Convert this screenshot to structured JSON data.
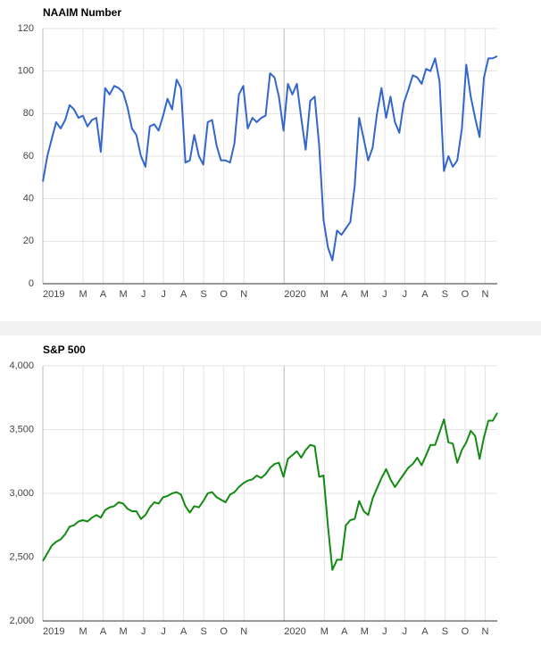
{
  "chart_data": [
    {
      "type": "line",
      "title": "NAAIM Number",
      "color": "#3366cc",
      "grid": true,
      "x": [
        0,
        0.22,
        0.44,
        0.66,
        0.89,
        1.11,
        1.33,
        1.55,
        1.77,
        1.99,
        2.22,
        2.44,
        2.66,
        2.88,
        3.1,
        3.32,
        3.55,
        3.77,
        3.99,
        4.21,
        4.43,
        4.65,
        4.88,
        5.1,
        5.32,
        5.54,
        5.76,
        5.98,
        6.2,
        6.43,
        6.65,
        6.87,
        7.09,
        7.31,
        7.53,
        7.76,
        7.98,
        8.2,
        8.42,
        8.64,
        8.86,
        9.09,
        9.31,
        9.53,
        9.75,
        9.97,
        10.19,
        10.42,
        10.64,
        10.86,
        11.08,
        11.3,
        11.52,
        11.74,
        11.97,
        12.19,
        12.41,
        12.63,
        12.85,
        13.07,
        13.3,
        13.52,
        13.74,
        13.96,
        14.18,
        14.4,
        14.63,
        14.85,
        15.07,
        15.29,
        15.51,
        15.73,
        15.96,
        16.18,
        16.4,
        16.62,
        16.84,
        17.07,
        17.29,
        17.51,
        17.73,
        17.95,
        18.17,
        18.4,
        18.62,
        18.84,
        19.06,
        19.28,
        19.51,
        19.73,
        19.95,
        20.17,
        20.39,
        20.61,
        20.84,
        21.06,
        21.28,
        21.5,
        21.72,
        21.94,
        22.16,
        22.38,
        22.6
      ],
      "values": [
        48,
        60,
        68,
        76,
        73,
        77,
        84,
        82,
        78,
        79,
        74,
        77,
        78,
        62,
        92,
        89,
        93,
        92,
        90,
        83,
        73,
        70,
        60,
        55,
        74,
        75,
        72,
        79,
        87,
        82,
        96,
        92,
        57,
        58,
        70,
        60,
        56,
        76,
        77,
        65,
        58,
        58,
        57,
        66,
        89,
        93,
        73,
        78,
        76,
        78,
        79,
        99,
        97,
        88,
        72,
        94,
        89,
        94,
        78,
        63,
        86,
        88,
        65,
        30,
        17,
        11,
        25,
        23,
        26,
        29,
        46,
        78,
        68,
        58,
        64,
        80,
        92,
        78,
        88,
        76,
        71,
        85,
        91,
        98,
        97,
        94,
        101,
        100,
        106,
        95,
        53,
        60,
        55,
        58,
        73,
        103,
        88,
        78,
        69,
        97,
        106,
        106,
        107
      ],
      "xlim": [
        0,
        22.6
      ],
      "xticks": [
        {
          "value": 0,
          "label": "2019"
        },
        {
          "value": 2,
          "label": "M"
        },
        {
          "value": 3,
          "label": "A"
        },
        {
          "value": 4,
          "label": "M"
        },
        {
          "value": 5,
          "label": "J"
        },
        {
          "value": 6,
          "label": "J"
        },
        {
          "value": 7,
          "label": "A"
        },
        {
          "value": 8,
          "label": "S"
        },
        {
          "value": 9,
          "label": "O"
        },
        {
          "value": 10,
          "label": "N"
        },
        {
          "value": 12,
          "label": "2020"
        },
        {
          "value": 14,
          "label": "M"
        },
        {
          "value": 15,
          "label": "A"
        },
        {
          "value": 16,
          "label": "M"
        },
        {
          "value": 17,
          "label": "J"
        },
        {
          "value": 18,
          "label": "J"
        },
        {
          "value": 19,
          "label": "A"
        },
        {
          "value": 20,
          "label": "S"
        },
        {
          "value": 21,
          "label": "O"
        },
        {
          "value": 22,
          "label": "N"
        }
      ],
      "ylim": [
        0,
        120
      ],
      "yticks": [
        0,
        20,
        40,
        60,
        80,
        100,
        120
      ]
    },
    {
      "type": "line",
      "title": "S&P 500",
      "color": "#138a13",
      "grid": true,
      "x": [
        0,
        0.22,
        0.44,
        0.66,
        0.89,
        1.11,
        1.33,
        1.55,
        1.77,
        1.99,
        2.22,
        2.44,
        2.66,
        2.88,
        3.1,
        3.32,
        3.55,
        3.77,
        3.99,
        4.21,
        4.43,
        4.65,
        4.88,
        5.1,
        5.32,
        5.54,
        5.76,
        5.98,
        6.2,
        6.43,
        6.65,
        6.87,
        7.09,
        7.31,
        7.53,
        7.76,
        7.98,
        8.2,
        8.42,
        8.64,
        8.86,
        9.09,
        9.31,
        9.53,
        9.75,
        9.97,
        10.19,
        10.42,
        10.64,
        10.86,
        11.08,
        11.3,
        11.52,
        11.74,
        11.97,
        12.19,
        12.41,
        12.63,
        12.85,
        13.07,
        13.3,
        13.52,
        13.74,
        13.96,
        14.18,
        14.4,
        14.63,
        14.85,
        15.07,
        15.29,
        15.51,
        15.73,
        15.96,
        16.18,
        16.4,
        16.62,
        16.84,
        17.07,
        17.29,
        17.51,
        17.73,
        17.95,
        18.17,
        18.4,
        18.62,
        18.84,
        19.06,
        19.28,
        19.51,
        19.73,
        19.95,
        20.17,
        20.39,
        20.61,
        20.84,
        21.06,
        21.28,
        21.5,
        21.72,
        21.94,
        22.16,
        22.38,
        22.6
      ],
      "values": [
        2470,
        2530,
        2590,
        2620,
        2640,
        2680,
        2740,
        2750,
        2780,
        2790,
        2780,
        2810,
        2830,
        2810,
        2870,
        2890,
        2900,
        2930,
        2920,
        2880,
        2860,
        2860,
        2800,
        2830,
        2890,
        2930,
        2920,
        2970,
        2980,
        3000,
        3010,
        2990,
        2900,
        2850,
        2900,
        2890,
        2940,
        3000,
        3010,
        2970,
        2950,
        2930,
        2990,
        3010,
        3050,
        3080,
        3100,
        3110,
        3140,
        3120,
        3150,
        3200,
        3230,
        3240,
        3130,
        3270,
        3300,
        3330,
        3280,
        3340,
        3380,
        3370,
        3130,
        3140,
        2740,
        2400,
        2480,
        2480,
        2750,
        2790,
        2800,
        2940,
        2860,
        2830,
        2960,
        3040,
        3120,
        3190,
        3110,
        3050,
        3100,
        3150,
        3200,
        3230,
        3280,
        3220,
        3300,
        3380,
        3380,
        3480,
        3580,
        3400,
        3390,
        3240,
        3340,
        3400,
        3490,
        3450,
        3270,
        3440,
        3570,
        3570,
        3630
      ],
      "xlim": [
        0,
        22.6
      ],
      "xticks": [
        {
          "value": 0,
          "label": "2019"
        },
        {
          "value": 2,
          "label": "M"
        },
        {
          "value": 3,
          "label": "A"
        },
        {
          "value": 4,
          "label": "M"
        },
        {
          "value": 5,
          "label": "J"
        },
        {
          "value": 6,
          "label": "J"
        },
        {
          "value": 7,
          "label": "A"
        },
        {
          "value": 8,
          "label": "S"
        },
        {
          "value": 9,
          "label": "O"
        },
        {
          "value": 10,
          "label": "N"
        },
        {
          "value": 12,
          "label": "2020"
        },
        {
          "value": 14,
          "label": "M"
        },
        {
          "value": 15,
          "label": "A"
        },
        {
          "value": 16,
          "label": "M"
        },
        {
          "value": 17,
          "label": "J"
        },
        {
          "value": 18,
          "label": "J"
        },
        {
          "value": 19,
          "label": "A"
        },
        {
          "value": 20,
          "label": "S"
        },
        {
          "value": 21,
          "label": "O"
        },
        {
          "value": 22,
          "label": "N"
        }
      ],
      "ylim": [
        2000,
        4000
      ],
      "yticks": [
        {
          "value": 2000,
          "label": "2,000"
        },
        {
          "value": 2500,
          "label": "2,500"
        },
        {
          "value": 3000,
          "label": "3,000"
        },
        {
          "value": 3500,
          "label": "3,500"
        },
        {
          "value": 4000,
          "label": "4,000"
        }
      ]
    }
  ]
}
